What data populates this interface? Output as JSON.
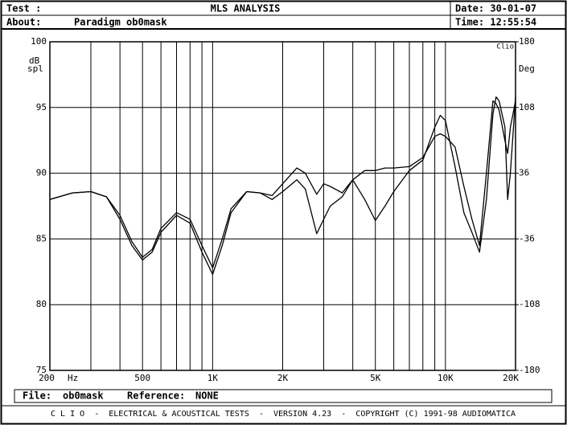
{
  "header": {
    "test_label": "Test :",
    "title": "MLS ANALYSIS",
    "date": "Date: 30-01-07",
    "about_label": "About:",
    "about": "Paradigm ob0mask",
    "time": "Time: 12:55:54"
  },
  "chart_data": {
    "type": "line",
    "y_label_top": "dB",
    "y_label_bottom": "spl",
    "y2_label": "Deg",
    "corner_label": "Clio",
    "x_label": "Hz",
    "log_x": true,
    "grid": true,
    "xlim": [
      200,
      20000
    ],
    "xticks": [
      200,
      500,
      {
        "value": 1000,
        "label": "1K"
      },
      {
        "value": 2000,
        "label": "2K"
      },
      {
        "value": 5000,
        "label": "5K"
      },
      {
        "value": 10000,
        "label": "10K"
      },
      {
        "value": 20000,
        "label": "20K"
      }
    ],
    "xgrid": [
      300,
      400,
      600,
      700,
      800,
      900,
      3000,
      4000,
      6000,
      7000,
      8000,
      9000
    ],
    "ylim": [
      75,
      100
    ],
    "yticks": [
      75,
      80,
      85,
      90,
      95,
      100
    ],
    "y2lim": [
      -180,
      180
    ],
    "y2ticks": [
      -180,
      -108,
      -36,
      36,
      108,
      180
    ],
    "x": [
      200,
      250,
      300,
      350,
      400,
      450,
      500,
      550,
      600,
      700,
      800,
      900,
      1000,
      1100,
      1200,
      1400,
      1600,
      1800,
      2000,
      2300,
      2500,
      2800,
      3000,
      3200,
      3600,
      4000,
      4500,
      5000,
      5500,
      6000,
      7000,
      8000,
      9000,
      9500,
      10000,
      11000,
      12000,
      13000,
      14000,
      15000,
      16000,
      16500,
      17000,
      18000,
      18500,
      19000,
      20000
    ],
    "series": [
      {
        "color": "#000000",
        "values": [
          88.0,
          88.5,
          88.6,
          88.2,
          86.5,
          84.5,
          83.4,
          84.0,
          85.5,
          86.8,
          86.2,
          84.0,
          82.3,
          84.5,
          87.0,
          88.6,
          88.5,
          88.0,
          88.6,
          89.5,
          88.8,
          85.4,
          86.5,
          87.5,
          88.2,
          89.5,
          88.0,
          86.4,
          87.5,
          88.6,
          90.2,
          91.0,
          93.5,
          94.4,
          94.0,
          90.5,
          87.0,
          85.5,
          84.0,
          88.0,
          94.5,
          95.8,
          95.5,
          93.5,
          88.0,
          90.0,
          95.8
        ]
      },
      {
        "color": "#000000",
        "values": [
          88.0,
          88.5,
          88.6,
          88.2,
          86.8,
          84.8,
          83.6,
          84.2,
          85.8,
          87.0,
          86.5,
          84.5,
          82.8,
          85.0,
          87.3,
          88.6,
          88.5,
          88.3,
          89.2,
          90.4,
          90.0,
          88.4,
          89.2,
          89.0,
          88.5,
          89.5,
          90.2,
          90.2,
          90.4,
          90.4,
          90.5,
          91.2,
          92.8,
          93.0,
          92.8,
          92.0,
          89.0,
          86.5,
          84.5,
          90.0,
          95.5,
          95.3,
          94.8,
          92.5,
          91.5,
          93.5,
          95.5
        ]
      }
    ]
  },
  "footer": {
    "file_label": "File:",
    "file": "ob0mask",
    "reference_label": "Reference:",
    "reference": "NONE"
  },
  "status_bar": "C L I O  -  ELECTRICAL & ACOUSTICAL TESTS  -  VERSION 4.23  -  COPYRIGHT (C) 1991-98 AUDIOMATICA"
}
